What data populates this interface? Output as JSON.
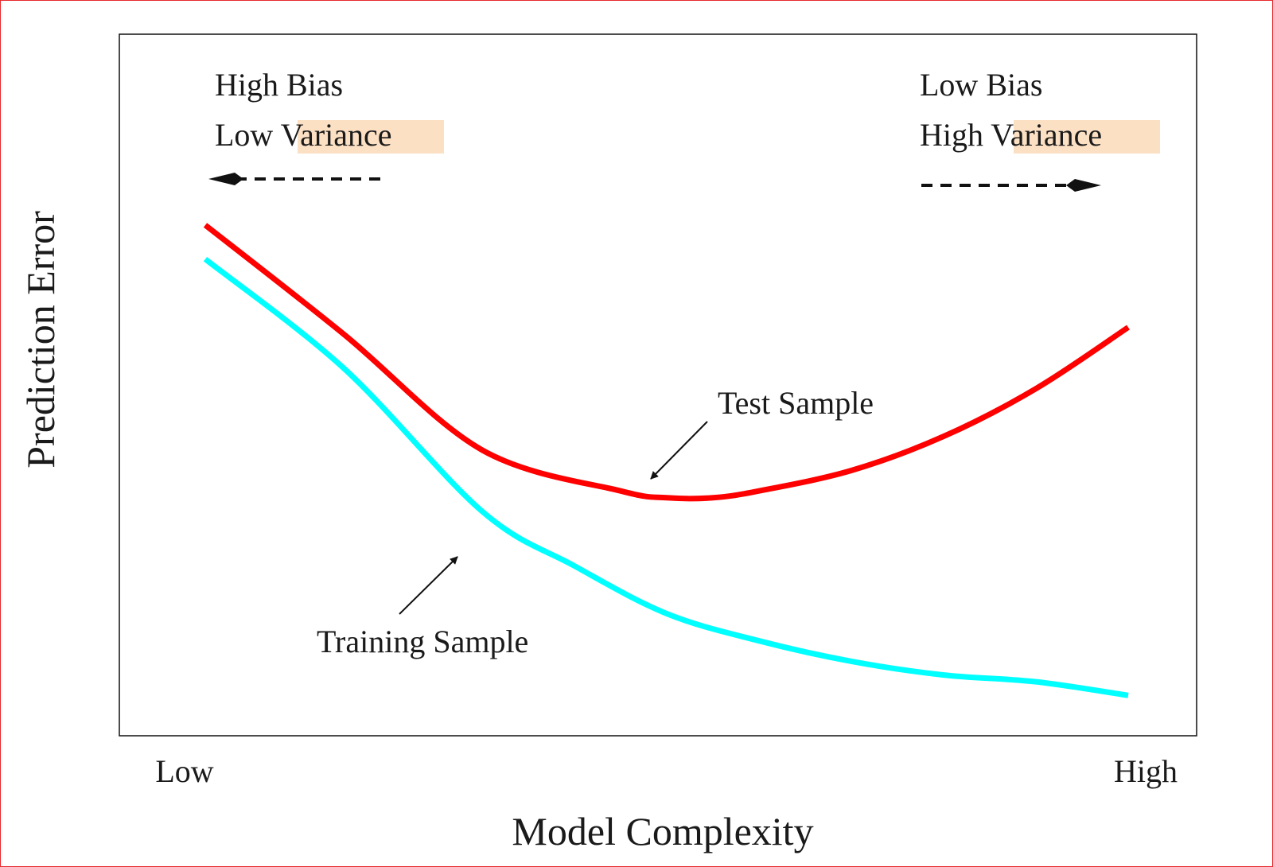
{
  "chart_data": {
    "type": "line",
    "xlabel": "Model Complexity",
    "ylabel": "Prediction Error",
    "x_tick_labels": [
      "Low",
      "High"
    ],
    "xlim": [
      0,
      1
    ],
    "ylim": [
      0,
      1
    ],
    "grid": false,
    "series": [
      {
        "name": "Test Sample",
        "color": "#ff0000",
        "x": [
          0.0,
          0.15,
          0.3,
          0.45,
          0.5,
          0.55,
          0.6,
          0.7,
          0.8,
          0.9,
          1.0
        ],
        "y": [
          0.72,
          0.56,
          0.39,
          0.33,
          0.32,
          0.32,
          0.33,
          0.36,
          0.41,
          0.48,
          0.57
        ]
      },
      {
        "name": "Training Sample",
        "color": "#00ffff",
        "x": [
          0.0,
          0.15,
          0.3,
          0.4,
          0.5,
          0.6,
          0.7,
          0.8,
          0.9,
          1.0
        ],
        "y": [
          0.67,
          0.51,
          0.3,
          0.22,
          0.15,
          0.11,
          0.08,
          0.06,
          0.05,
          0.03
        ]
      }
    ],
    "annotations": {
      "left_region": {
        "line1": "High Bias",
        "line2_prefix": "Low ",
        "line2_highlight": "Variance",
        "arrow_direction": "left"
      },
      "right_region": {
        "line1": "Low Bias",
        "line2_prefix": "High ",
        "line2_highlight": "Variance",
        "arrow_direction": "right"
      },
      "test_label": "Test Sample",
      "training_label": "Training Sample",
      "highlight_color": "#fce0c4"
    }
  }
}
